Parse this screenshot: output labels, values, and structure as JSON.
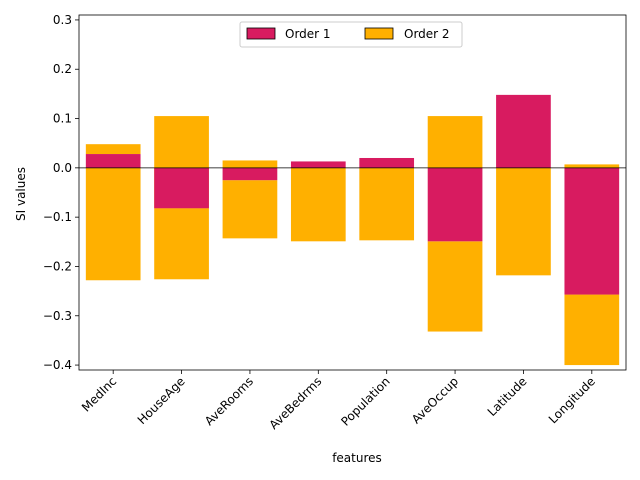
{
  "chart_data": {
    "type": "bar",
    "stacked": true,
    "categories": [
      "MedInc",
      "HouseAge",
      "AveRooms",
      "AveBedrms",
      "Population",
      "AveOccup",
      "Latitude",
      "Longitude"
    ],
    "series": [
      {
        "name": "Order 1",
        "color": "#d81b60",
        "values": [
          0.028,
          -0.082,
          -0.025,
          0.013,
          0.02,
          -0.149,
          0.148,
          -0.257
        ]
      },
      {
        "name": "Order 2",
        "color": "#ffb000",
        "segments": [
          [
            0.028,
            0.048
          ],
          [
            0.0,
            -0.228
          ],
          [
            -0.082,
            0.105
          ],
          [
            -0.082,
            -0.226
          ],
          [
            0.0,
            0.015
          ],
          [
            -0.025,
            -0.143
          ],
          [
            0.0,
            -0.149
          ],
          [
            0.0,
            -0.147
          ],
          [
            0.0,
            0.105
          ],
          [
            -0.149,
            -0.332
          ],
          [
            0.0,
            -0.218
          ],
          [
            0.0,
            0.007
          ],
          [
            -0.257,
            -0.4
          ]
        ],
        "segment_categories": [
          "MedInc",
          "MedInc",
          "HouseAge",
          "HouseAge",
          "AveRooms",
          "AveRooms",
          "AveBedrms",
          "Population",
          "AveOccup",
          "AveOccup",
          "Latitude",
          "Longitude",
          "Longitude"
        ]
      }
    ],
    "xlabel": "features",
    "ylabel": "SI values",
    "ylim": [
      -0.41,
      0.31
    ],
    "yticks": [
      -0.4,
      -0.3,
      -0.2,
      -0.1,
      0.0,
      0.1,
      0.2,
      0.3
    ],
    "ytick_labels": [
      "−0.4",
      "−0.3",
      "−0.2",
      "−0.1",
      "0.0",
      "0.1",
      "0.2",
      "0.3"
    ],
    "legend": {
      "position": "upper-center",
      "columns": 2,
      "entries": [
        "Order 1",
        "Order 2"
      ]
    },
    "grid": false,
    "zero_line": true
  }
}
